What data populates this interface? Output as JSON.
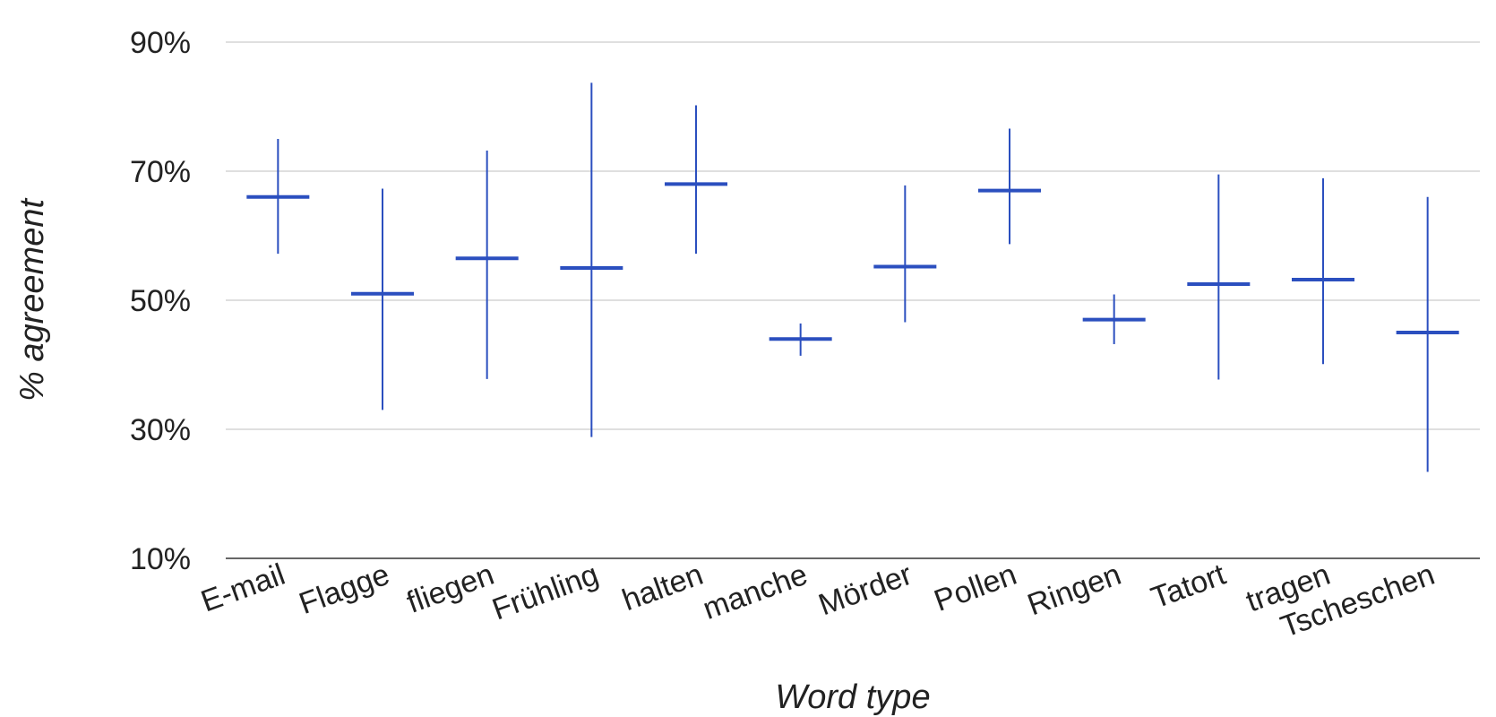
{
  "chart_data": {
    "type": "candlestick",
    "title": "",
    "xlabel": "Word type",
    "ylabel": "% agreement",
    "ylim": [
      10,
      90
    ],
    "yticks": [
      10,
      30,
      50,
      70,
      90
    ],
    "ytick_labels": [
      "10%",
      "30%",
      "50%",
      "70%",
      "90%"
    ],
    "grid": true,
    "legend": "none",
    "categories": [
      "E-mail",
      "Flagge",
      "fliegen",
      "Frühling",
      "halten",
      "manche",
      "Mörder",
      "Pollen",
      "Ringen",
      "Tatort",
      "tragen",
      "Tscheschen"
    ],
    "mean": [
      66,
      51,
      56.5,
      55,
      68,
      44,
      55.2,
      67,
      47,
      52.5,
      53.2,
      45
    ],
    "low": [
      57.2,
      33,
      37.8,
      28.8,
      57.2,
      41.4,
      46.6,
      58.7,
      43.2,
      37.7,
      40.1,
      23.4
    ],
    "high": [
      75,
      67.3,
      73.2,
      83.7,
      80.2,
      46.4,
      67.8,
      76.6,
      50.9,
      69.5,
      68.9,
      66
    ],
    "color": "#2b4fbf"
  }
}
